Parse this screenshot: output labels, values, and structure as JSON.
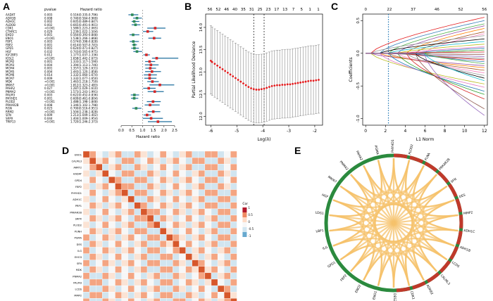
{
  "panels": {
    "a": "A",
    "b": "B",
    "c": "C",
    "d": "D",
    "e": "E"
  },
  "chart_data": [
    {
      "type": "forest",
      "header": {
        "pvalue": "pvalue",
        "hr": "Hazard ratio"
      },
      "xlabel": "Hazard ratio",
      "xlim": [
        0,
        2.5
      ],
      "xticks": [
        0,
        0.5,
        1.0,
        1.5,
        2.0,
        2.5
      ],
      "rows": [
        {
          "gene": "AADAT",
          "p": "0.003",
          "hr_text": "0.516(0.335-0.796)",
          "hr": 0.52,
          "lo": 0.34,
          "hi": 0.8,
          "color": "#2e8b57"
        },
        {
          "gene": "ADH1B",
          "p": "0.008",
          "hr_text": "0.740(0.564-0.969)",
          "hr": 0.74,
          "lo": 0.56,
          "hi": 0.97,
          "color": "#2e8b57"
        },
        {
          "gene": "ADH1C",
          "p": "0.002",
          "hr_text": "0.605(0.489-0.847)",
          "hr": 0.61,
          "lo": 0.49,
          "hi": 0.85,
          "color": "#2e8b57"
        },
        {
          "gene": "ALDOB",
          "p": "0.002",
          "hr_text": "0.665(0.491-0.901)",
          "hr": 0.67,
          "lo": 0.49,
          "hi": 0.9,
          "color": "#2e8b57"
        },
        {
          "gene": "CDK1",
          "p": "<0.001",
          "hr_text": "1.589(1.223-2.065)",
          "hr": 1.59,
          "lo": 1.22,
          "hi": 2.07,
          "color": "#d62728"
        },
        {
          "gene": "CTHRC1",
          "p": "0.029",
          "hr_text": "1.239(1.022-1.504)",
          "hr": 1.24,
          "lo": 1.02,
          "hi": 1.5,
          "color": "#d62728"
        },
        {
          "gene": "EHD3",
          "p": "0.001",
          "hr_text": "0.564(0.393-0.848)",
          "hr": 0.56,
          "lo": 0.39,
          "hi": 0.85,
          "color": "#2e8b57"
        },
        {
          "gene": "ENO1",
          "p": "<0.001",
          "hr_text": "1.538(1.266-1.868)",
          "hr": 1.54,
          "lo": 1.27,
          "hi": 1.87,
          "color": "#d62728"
        },
        {
          "gene": "FBP1",
          "p": "0.003",
          "hr_text": "0.574(0.398-0.828)",
          "hr": 0.57,
          "lo": 0.4,
          "hi": 0.83,
          "color": "#2e8b57"
        },
        {
          "gene": "FBP2",
          "p": "0.001",
          "hr_text": "0.614(0.507-0.743)",
          "hr": 0.61,
          "lo": 0.51,
          "hi": 0.74,
          "color": "#2e8b57"
        },
        {
          "gene": "GPD1",
          "p": "0.001",
          "hr_text": "0.624(0.471-0.827)",
          "hr": 0.62,
          "lo": 0.47,
          "hi": 0.83,
          "color": "#2e8b57"
        },
        {
          "gene": "HGF",
          "p": "0.032",
          "hr_text": "0.743(0.565-0.975)",
          "hr": 0.74,
          "lo": 0.57,
          "hi": 0.98,
          "color": "#2e8b57"
        },
        {
          "gene": "IGF2BP3",
          "p": "0.012",
          "hr_text": "1.177(1.037-1.336)",
          "hr": 1.18,
          "lo": 1.04,
          "hi": 1.34,
          "color": "#d62728"
        },
        {
          "gene": "IGSL2",
          "p": "<0.001",
          "hr_text": "1.658(1.442-2.673)",
          "hr": 1.66,
          "lo": 1.44,
          "hi": 2.67,
          "color": "#d62728"
        },
        {
          "gene": "MCM2",
          "p": "0.001",
          "hr_text": "1.333(1.117-1.590)",
          "hr": 1.33,
          "lo": 1.12,
          "hi": 1.59,
          "color": "#d62728"
        },
        {
          "gene": "MCM3",
          "p": "0.004",
          "hr_text": "1.394(1.113-1.746)",
          "hr": 1.39,
          "lo": 1.11,
          "hi": 1.75,
          "color": "#d62728"
        },
        {
          "gene": "MCM4",
          "p": "0.001",
          "hr_text": "1.357(1.129-1.631)",
          "hr": 1.36,
          "lo": 1.13,
          "hi": 1.63,
          "color": "#d62728"
        },
        {
          "gene": "MCM5",
          "p": "0.004",
          "hr_text": "1.443(1.120-1.858)",
          "hr": 1.44,
          "lo": 1.12,
          "hi": 1.86,
          "color": "#d62728"
        },
        {
          "gene": "MCM6",
          "p": "0.014",
          "hr_text": "1.332(1.060-1.674)",
          "hr": 1.33,
          "lo": 1.06,
          "hi": 1.67,
          "color": "#d62728"
        },
        {
          "gene": "MCM7",
          "p": "0.009",
          "hr_text": "1.332(1.077-1.650)",
          "hr": 1.33,
          "lo": 1.08,
          "hi": 1.65,
          "color": "#d62728"
        },
        {
          "gene": "MDK",
          "p": "<0.001",
          "hr_text": "1.463(1.218-1.759)",
          "hr": 1.46,
          "lo": 1.22,
          "hi": 1.76,
          "color": "#d62728"
        },
        {
          "gene": "MKI67",
          "p": "<0.001",
          "hr_text": "1.812(1.323-2.483)",
          "hr": 1.81,
          "lo": 1.32,
          "hi": 2.48,
          "color": "#d62728"
        },
        {
          "gene": "PAHA2",
          "p": "0.027",
          "hr_text": "1.287(1.029-1.610)",
          "hr": 1.29,
          "lo": 1.03,
          "hi": 1.61,
          "color": "#d62728"
        },
        {
          "gene": "PNMA2",
          "p": "<0.001",
          "hr_text": "1.573(1.243-1.991)",
          "hr": 1.57,
          "lo": 1.24,
          "hi": 1.99,
          "color": "#d62728"
        },
        {
          "gene": "PALM3",
          "p": "0.003",
          "hr_text": "0.622(0.452-0.836)",
          "hr": 0.62,
          "lo": 0.45,
          "hi": 0.84,
          "color": "#2e8b57"
        },
        {
          "gene": "PHYHD1",
          "p": "0.001",
          "hr_text": "0.609(0.461-0.804)",
          "hr": 0.61,
          "lo": 0.46,
          "hi": 0.8,
          "color": "#2e8b57"
        },
        {
          "gene": "PLOD2",
          "p": "<0.001",
          "hr_text": "1.488(1.198-1.848)",
          "hr": 1.49,
          "lo": 1.2,
          "hi": 1.85,
          "color": "#d62728"
        },
        {
          "gene": "PRKAR2B",
          "p": "0.008",
          "hr_text": "1.346(1.102-1.798)",
          "hr": 1.35,
          "lo": 1.1,
          "hi": 1.8,
          "color": "#d62728"
        },
        {
          "gene": "RGN",
          "p": "0.023",
          "hr_text": "0.700(0.516-0.951)",
          "hr": 0.7,
          "lo": 0.52,
          "hi": 0.95,
          "color": "#2e8b57"
        },
        {
          "gene": "RRM2",
          "p": "<0.001",
          "hr_text": "1.504(1.238-1.828)",
          "hr": 1.5,
          "lo": 1.24,
          "hi": 1.83,
          "color": "#d62728"
        },
        {
          "gene": "SFN",
          "p": "0.009",
          "hr_text": "1.213(1.049-1.402)",
          "hr": 1.21,
          "lo": 1.05,
          "hi": 1.4,
          "color": "#d62728"
        },
        {
          "gene": "SRPX",
          "p": "0.044",
          "hr_text": "1.404(1.009-1.954)",
          "hr": 1.4,
          "lo": 1.01,
          "hi": 1.95,
          "color": "#d62728"
        },
        {
          "gene": "TRIP13",
          "p": "<0.001",
          "hr_text": "1.720(1.246-2.373)",
          "hr": 1.72,
          "lo": 1.25,
          "hi": 2.37,
          "color": "#d62728"
        }
      ]
    },
    {
      "type": "errorbar",
      "xlabel": "Log(λ)",
      "ylabel": "Partial Likelihood Deviance",
      "xlim": [
        -6.2,
        -1.7
      ],
      "ylim": [
        11.8,
        14.3
      ],
      "xticks": [
        -6,
        -5,
        -4,
        -3,
        -2
      ],
      "yticks": [
        12.0,
        12.5,
        13.0,
        13.5,
        14.0
      ],
      "top_ticks": [
        "56",
        "52",
        "46",
        "40",
        "35",
        "31",
        "25",
        "23",
        "17",
        "13",
        "7",
        "5",
        "1",
        "1"
      ],
      "vlines": [
        -4.35,
        -3.95
      ],
      "x": [
        -6.0,
        -5.95,
        -5.85,
        -5.75,
        -5.65,
        -5.55,
        -5.45,
        -5.35,
        -5.25,
        -5.15,
        -5.05,
        -4.95,
        -4.85,
        -4.75,
        -4.65,
        -4.55,
        -4.45,
        -4.35,
        -4.25,
        -4.15,
        -4.05,
        -3.95,
        -3.85,
        -3.75,
        -3.65,
        -3.55,
        -3.45,
        -3.35,
        -3.25,
        -3.15,
        -3.05,
        -2.95,
        -2.85,
        -2.75,
        -2.65,
        -2.55,
        -2.45,
        -2.35,
        -2.25,
        -2.15,
        -2.05,
        -1.95,
        -1.85
      ],
      "y": [
        13.25,
        13.22,
        13.18,
        13.14,
        13.1,
        13.06,
        13.02,
        12.98,
        12.94,
        12.9,
        12.86,
        12.82,
        12.78,
        12.74,
        12.7,
        12.66,
        12.63,
        12.61,
        12.6,
        12.6,
        12.61,
        12.62,
        12.64,
        12.66,
        12.68,
        12.69,
        12.7,
        12.7,
        12.71,
        12.71,
        12.72,
        12.72,
        12.73,
        12.74,
        12.75,
        12.76,
        12.77,
        12.78,
        12.79,
        12.8,
        12.8,
        12.81,
        12.82
      ],
      "err": 0.75
    },
    {
      "type": "line",
      "xlabel": "L1 Norm",
      "ylabel": "Coefficients",
      "xlim": [
        -0.3,
        12.3
      ],
      "ylim": [
        -1.1,
        0.6
      ],
      "xticks": [
        0,
        2,
        4,
        6,
        8,
        10,
        12
      ],
      "yticks": [
        -1.0,
        -0.5,
        0.0,
        0.5
      ],
      "top_ticks": [
        "0",
        "22",
        "37",
        "46",
        "52",
        "56"
      ],
      "vline": 2.3,
      "end_values": [
        0.55,
        0.5,
        0.45,
        0.42,
        0.38,
        0.33,
        0.3,
        0.27,
        0.22,
        0.18,
        0.14,
        0.1,
        0.08,
        0.05,
        0.02,
        -0.02,
        -0.05,
        -0.08,
        -0.1,
        -0.13,
        -0.16,
        -0.19,
        -0.22,
        -0.26,
        -0.3,
        -0.34,
        -0.38,
        -0.42,
        -0.47,
        -0.52,
        -0.58,
        -0.63,
        -0.7,
        -0.85,
        -0.95
      ]
    },
    {
      "type": "heatmap",
      "title": "",
      "genes": [
        "ENO1",
        "CALML3",
        "ARRT2",
        "AADAT",
        "GPD4",
        "FBP2",
        "PHYHD1",
        "ADH1C",
        "PRP1",
        "PRKAR2B",
        "SRPX",
        "PLOD2",
        "PUNH",
        "PGMA",
        "DES",
        "ILG",
        "EHO3",
        "SFN",
        "MDK",
        "PNMA2",
        "PALM3",
        "LCDS",
        "MMP2",
        "CDK1"
      ],
      "legend": {
        "title": "Cor",
        "ticks": [
          "1",
          "0.5",
          "0",
          "-0.5",
          "-1"
        ]
      }
    },
    {
      "type": "chord",
      "genes": [
        "PHYHD1",
        "PLOD2",
        "FLNA",
        "PRKAR2B",
        "SFN",
        "DES",
        "MMP2",
        "ADH1C",
        "ADH1B",
        "LCDS",
        "CALML3",
        "ADRB2",
        "CDK1",
        "DES2",
        "ENO1",
        "ENO2",
        "FBP2",
        "GPD1",
        "ILG",
        "LBP1",
        "LDG1",
        "HGF",
        "MKI67",
        "PNMA2",
        "PAHA2",
        "PGMA"
      ]
    }
  ]
}
